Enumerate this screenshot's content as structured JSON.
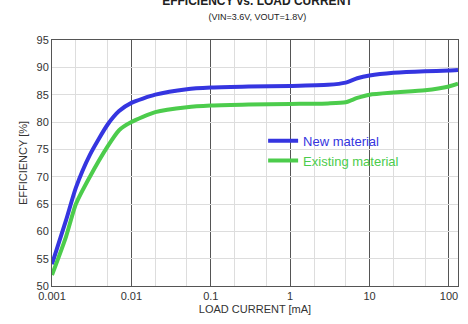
{
  "chart_data": {
    "type": "line",
    "title": "EFFICIENCY vs. LOAD CURRENT",
    "subtitle": "(VIN=3.6V, VOUT=1.8V)",
    "x_label": "LOAD CURRENT [mA]",
    "y_label": "EFFICIENCY [%]",
    "log": "x",
    "grid": true,
    "legend": "center",
    "x": [
      0.001,
      0.0015,
      0.002,
      0.003,
      0.005,
      0.007,
      0.01,
      0.02,
      0.05,
      0.1,
      0.3,
      1,
      3,
      5,
      7,
      10,
      20,
      50,
      100,
      130
    ],
    "series": [
      {
        "name": "New material",
        "color": "#3535e0",
        "values": [
          54,
          62,
          68,
          74,
          79.5,
          82,
          83.5,
          85,
          86,
          86.3,
          86.5,
          86.6,
          86.8,
          87.2,
          88,
          88.5,
          89,
          89.3,
          89.4,
          89.5
        ]
      },
      {
        "name": "Existing material",
        "color": "#4ccc4c",
        "values": [
          52,
          59,
          65,
          70,
          75.5,
          78.5,
          80,
          81.8,
          82.7,
          83,
          83.2,
          83.3,
          83.4,
          83.6,
          84.4,
          85,
          85.4,
          85.8,
          86.5,
          87
        ]
      }
    ],
    "xlim": [
      0.001,
      130
    ],
    "xticks": [
      0.001,
      0.01,
      0.1,
      1,
      10,
      100
    ],
    "ylim": [
      50,
      95
    ],
    "yticks": [
      50,
      55,
      60,
      65,
      70,
      75,
      80,
      85,
      90,
      95
    ]
  }
}
